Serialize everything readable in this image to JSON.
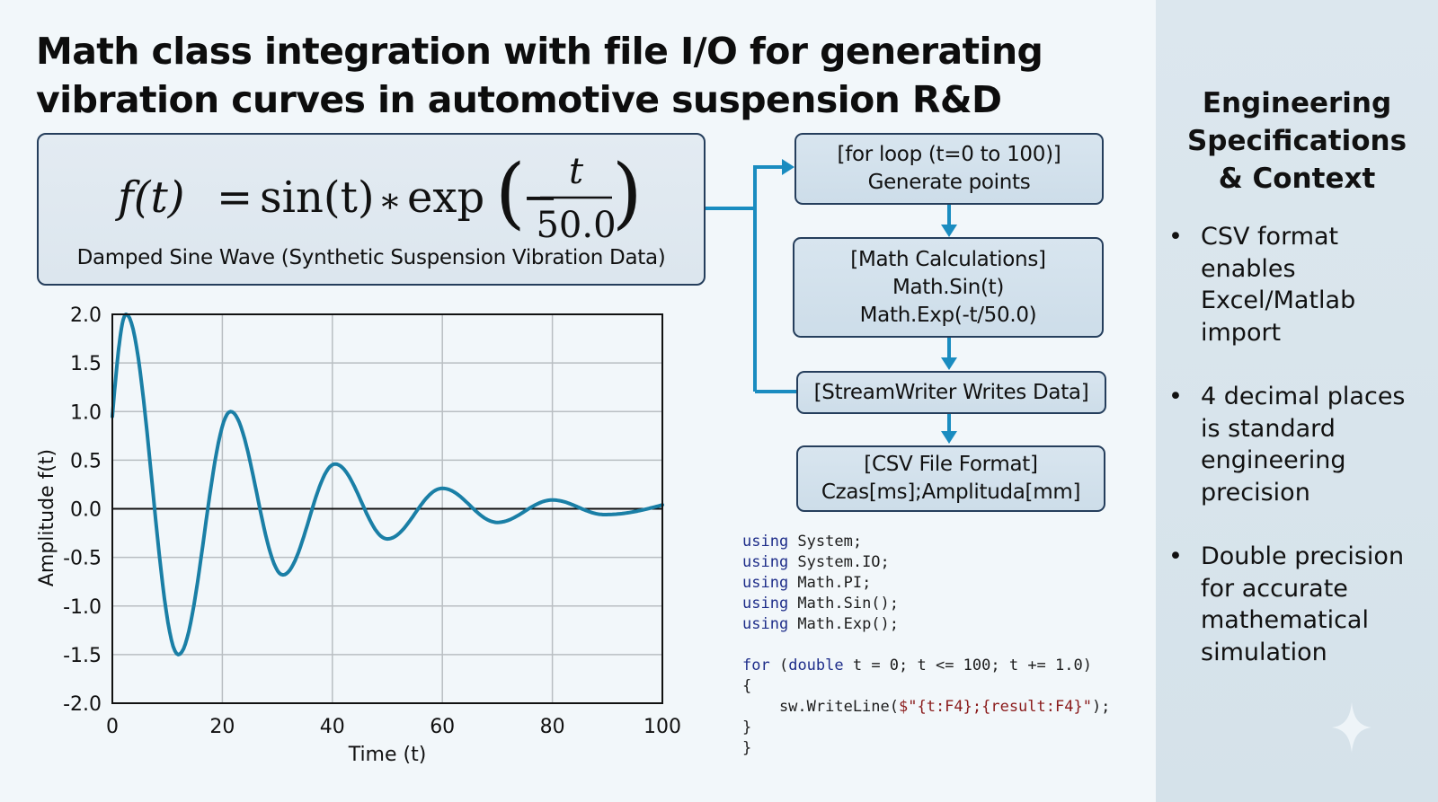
{
  "title": "Math class integration with file I/O for generating vibration curves in automotive suspension R&D",
  "formula": {
    "lhs": "f(t)",
    "equals": "=",
    "sin_part": "sin(t)",
    "operator": "∗",
    "exp_part": "exp",
    "numerator": "t",
    "denominator": "50.0",
    "minus": "−",
    "caption": "Damped Sine Wave (Synthetic Suspension Vibration Data)"
  },
  "flowchart": {
    "steps": [
      {
        "lines": [
          "[for loop (t=0 to 100)]",
          "Generate points"
        ]
      },
      {
        "lines": [
          "[Math Calculations]",
          "Math.Sin(t)",
          "Math.Exp(-t/50.0)"
        ]
      },
      {
        "lines": [
          "[StreamWriter Writes Data]"
        ]
      },
      {
        "lines": [
          "[CSV File Format]",
          "Czas[ms];Amplitudа[mm]"
        ]
      }
    ],
    "connector_color": "#1a8cc0"
  },
  "code": {
    "lines": [
      {
        "kw": "using",
        "rest": " System;"
      },
      {
        "kw": "using",
        "rest": " System.IO;"
      },
      {
        "kw": "using",
        "rest": " Math.PI;"
      },
      {
        "kw": "using",
        "rest": " Math.Sin();"
      },
      {
        "kw": "using",
        "rest": " Math.Exp();"
      },
      {
        "kw": "",
        "rest": ""
      },
      {
        "kw": "for",
        "rest": " (",
        "kw2": "double",
        "rest2": " t = 0; t <= 100; t += 1.0)"
      },
      {
        "kw": "",
        "rest": "{"
      },
      {
        "kw": "",
        "rest": "    sw.WriteLine(",
        "str": "$\"{t:F4};{result:F4}\"",
        "rest2": ");"
      },
      {
        "kw": "",
        "rest": "}"
      },
      {
        "kw": "",
        "rest": "}"
      }
    ]
  },
  "sidebar": {
    "title_lines": [
      "Engineering",
      "Specifications",
      "& Context"
    ],
    "bullets": [
      {
        "lines": [
          "CSV format",
          "enables",
          "Excel/Matlab",
          "import"
        ]
      },
      {
        "lines": [
          "4 decimal places",
          "is standard",
          "engineering",
          "precision"
        ]
      },
      {
        "lines": [
          "Double precision",
          "for accurate",
          "mathematical",
          "simulation"
        ]
      }
    ],
    "bullet_glyph": "•"
  },
  "chart_data": {
    "type": "line",
    "title": "",
    "xlabel": "Time (t)",
    "ylabel": "Amplitude f(t)",
    "xlim": [
      0,
      100
    ],
    "ylim": [
      -2.0,
      2.0
    ],
    "xticks": [
      0,
      20,
      40,
      60,
      80,
      100
    ],
    "xtick_labels": [
      "0",
      "20",
      "40",
      "60",
      "80",
      "100"
    ],
    "yticks": [
      2.0,
      1.5,
      1.0,
      0.5,
      0.0,
      -0.5,
      -1.0,
      -1.5,
      -2.0
    ],
    "ytick_labels": [
      "2.0",
      "1.5",
      "1.0",
      "0.5",
      "0.0",
      "-0.5",
      "-1.0",
      "-1.5",
      "-2.0"
    ],
    "grid": true,
    "zero_line": true,
    "series_color": "#1a7fa6",
    "series": [
      {
        "name": "f(t)",
        "extrema": [
          {
            "t": 0,
            "y": 0.95
          },
          {
            "t": 2.5,
            "y": 2.0
          },
          {
            "t": 12,
            "y": -1.5
          },
          {
            "t": 21.5,
            "y": 1.0
          },
          {
            "t": 31,
            "y": -0.68
          },
          {
            "t": 40.5,
            "y": 0.46
          },
          {
            "t": 50,
            "y": -0.31
          },
          {
            "t": 60,
            "y": 0.21
          },
          {
            "t": 70,
            "y": -0.14
          },
          {
            "t": 80,
            "y": 0.09
          },
          {
            "t": 89.5,
            "y": -0.06
          },
          {
            "t": 100,
            "y": 0.04
          }
        ]
      }
    ]
  }
}
